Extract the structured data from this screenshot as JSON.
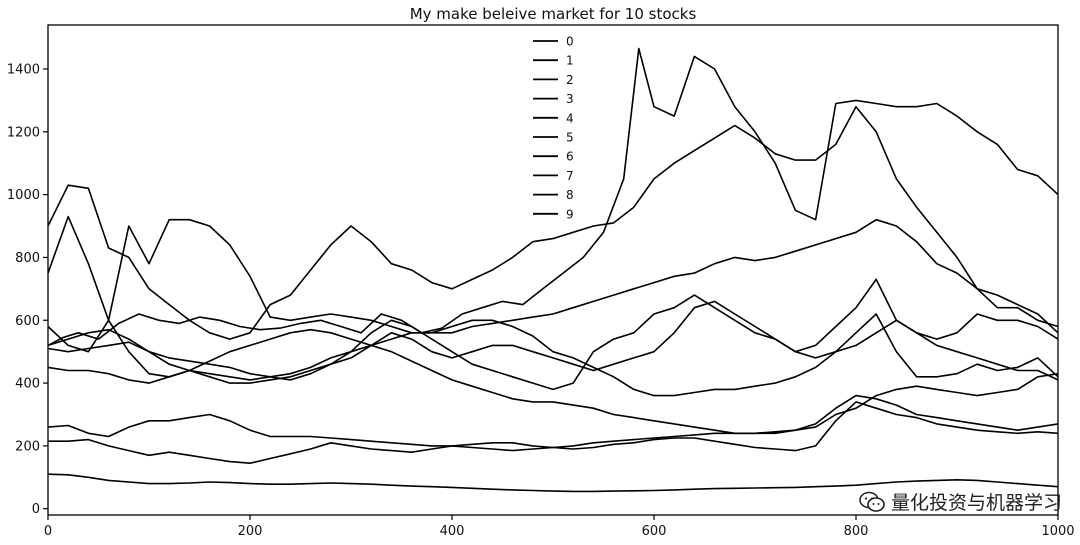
{
  "chart_data": {
    "type": "line",
    "title": "My make beleive market for 10 stocks",
    "xlabel": "",
    "ylabel": "",
    "xlim": [
      0,
      1000
    ],
    "ylim": [
      -20,
      1540
    ],
    "xticks": [
      0,
      200,
      400,
      600,
      800,
      1000
    ],
    "yticks": [
      0,
      200,
      400,
      600,
      800,
      1000,
      1200,
      1400
    ],
    "grid": false,
    "legend_position": "top-center",
    "series": [
      {
        "name": "0",
        "color": "#000000",
        "x": [
          0,
          15,
          30,
          50,
          70,
          90,
          110,
          130,
          150,
          170,
          190,
          210,
          230,
          250,
          270,
          290,
          310,
          330,
          350,
          370,
          390,
          410,
          430,
          450,
          470,
          490,
          510,
          530,
          550,
          570,
          585,
          600,
          620,
          640,
          660,
          680,
          700,
          720,
          740,
          760,
          780,
          800,
          820,
          840,
          860,
          880,
          900,
          920,
          940,
          960,
          980,
          1000
        ],
        "y": [
          520,
          545,
          560,
          540,
          590,
          620,
          600,
          590,
          610,
          600,
          580,
          570,
          575,
          590,
          600,
          580,
          560,
          620,
          600,
          560,
          575,
          620,
          640,
          660,
          650,
          700,
          750,
          800,
          880,
          1050,
          1465,
          1280,
          1250,
          1440,
          1400,
          1280,
          1200,
          1100,
          950,
          920,
          1290,
          1300,
          1290,
          1280,
          1280,
          1290,
          1250,
          1200,
          1160,
          1080,
          1060,
          1000
        ]
      },
      {
        "name": "1",
        "color": "#000000",
        "x": [
          0,
          20,
          40,
          60,
          80,
          100,
          120,
          140,
          160,
          180,
          200,
          220,
          240,
          260,
          280,
          300,
          320,
          340,
          360,
          380,
          400,
          420,
          440,
          460,
          480,
          500,
          520,
          540,
          560,
          580,
          600,
          620,
          640,
          660,
          680,
          700,
          720,
          740,
          760,
          780,
          800,
          820,
          840,
          860,
          880,
          900,
          920,
          940,
          960,
          980,
          1000
        ],
        "y": [
          900,
          1030,
          1020,
          830,
          800,
          700,
          650,
          600,
          560,
          540,
          560,
          650,
          680,
          760,
          840,
          900,
          850,
          780,
          760,
          720,
          700,
          730,
          760,
          800,
          850,
          860,
          880,
          900,
          910,
          960,
          1050,
          1100,
          1140,
          1180,
          1220,
          1180,
          1130,
          1110,
          1110,
          1160,
          1280,
          1200,
          1050,
          960,
          880,
          800,
          700,
          640,
          640,
          600,
          580
        ]
      },
      {
        "name": "2",
        "color": "#000000",
        "x": [
          0,
          20,
          40,
          60,
          80,
          100,
          120,
          140,
          160,
          180,
          200,
          220,
          240,
          260,
          280,
          300,
          320,
          340,
          360,
          380,
          400,
          420,
          440,
          460,
          480,
          500,
          520,
          540,
          560,
          580,
          600,
          620,
          640,
          660,
          680,
          700,
          720,
          740,
          760,
          780,
          800,
          820,
          840,
          860,
          880,
          900,
          920,
          940,
          960,
          980,
          1000
        ],
        "y": [
          750,
          930,
          780,
          600,
          500,
          430,
          420,
          440,
          470,
          500,
          520,
          540,
          560,
          570,
          560,
          540,
          520,
          500,
          470,
          440,
          410,
          390,
          370,
          350,
          340,
          340,
          330,
          320,
          300,
          290,
          280,
          270,
          260,
          250,
          240,
          240,
          240,
          250,
          260,
          300,
          320,
          360,
          380,
          390,
          380,
          370,
          360,
          370,
          380,
          420,
          430
        ]
      },
      {
        "name": "3",
        "color": "#000000",
        "x": [
          0,
          20,
          40,
          60,
          80,
          100,
          120,
          140,
          160,
          180,
          200,
          220,
          240,
          260,
          280,
          300,
          320,
          340,
          360,
          380,
          400,
          420,
          440,
          460,
          480,
          500,
          520,
          540,
          560,
          580,
          600,
          620,
          640,
          660,
          680,
          700,
          720,
          740,
          760,
          780,
          800,
          820,
          840,
          860,
          880,
          900,
          920,
          940,
          960,
          980,
          1000
        ],
        "y": [
          580,
          520,
          500,
          600,
          900,
          780,
          920,
          920,
          900,
          840,
          740,
          610,
          600,
          610,
          620,
          610,
          600,
          580,
          560,
          560,
          560,
          580,
          590,
          600,
          610,
          620,
          640,
          660,
          680,
          700,
          720,
          740,
          750,
          780,
          800,
          790,
          800,
          820,
          840,
          860,
          880,
          920,
          900,
          850,
          780,
          750,
          700,
          680,
          650,
          620,
          560
        ]
      },
      {
        "name": "4",
        "color": "#000000",
        "x": [
          0,
          20,
          40,
          60,
          80,
          100,
          120,
          140,
          160,
          180,
          200,
          220,
          240,
          260,
          280,
          300,
          320,
          340,
          360,
          380,
          400,
          420,
          440,
          460,
          480,
          500,
          520,
          540,
          560,
          580,
          600,
          620,
          640,
          660,
          680,
          700,
          720,
          740,
          760,
          780,
          800,
          820,
          840,
          860,
          880,
          900,
          920,
          940,
          960,
          980,
          1000
        ],
        "y": [
          510,
          500,
          510,
          520,
          530,
          500,
          480,
          470,
          460,
          450,
          430,
          420,
          410,
          430,
          460,
          500,
          560,
          600,
          580,
          540,
          500,
          460,
          440,
          420,
          400,
          380,
          400,
          500,
          540,
          560,
          620,
          640,
          680,
          640,
          600,
          560,
          540,
          500,
          520,
          580,
          640,
          730,
          600,
          560,
          540,
          560,
          620,
          600,
          600,
          580,
          540
        ]
      },
      {
        "name": "5",
        "color": "#000000",
        "x": [
          0,
          20,
          40,
          60,
          80,
          100,
          120,
          140,
          160,
          180,
          200,
          220,
          240,
          260,
          280,
          300,
          320,
          340,
          360,
          380,
          400,
          420,
          440,
          460,
          480,
          500,
          520,
          540,
          560,
          580,
          600,
          620,
          640,
          660,
          680,
          700,
          720,
          740,
          760,
          780,
          800,
          820,
          840,
          860,
          880,
          900,
          920,
          940,
          960,
          980,
          1000
        ],
        "y": [
          450,
          440,
          440,
          430,
          410,
          400,
          420,
          440,
          430,
          420,
          410,
          420,
          430,
          450,
          480,
          500,
          520,
          540,
          560,
          560,
          580,
          600,
          600,
          580,
          550,
          500,
          480,
          450,
          420,
          380,
          360,
          360,
          370,
          380,
          380,
          390,
          400,
          420,
          450,
          500,
          560,
          620,
          500,
          420,
          420,
          430,
          460,
          440,
          450,
          480,
          420
        ]
      },
      {
        "name": "6",
        "color": "#000000",
        "x": [
          0,
          20,
          40,
          60,
          80,
          100,
          120,
          140,
          160,
          180,
          200,
          220,
          240,
          260,
          280,
          300,
          320,
          340,
          360,
          380,
          400,
          420,
          440,
          460,
          480,
          500,
          520,
          540,
          560,
          580,
          600,
          620,
          640,
          660,
          680,
          700,
          720,
          740,
          760,
          780,
          800,
          820,
          840,
          860,
          880,
          900,
          920,
          940,
          960,
          980,
          1000
        ],
        "y": [
          520,
          540,
          560,
          570,
          540,
          500,
          460,
          440,
          420,
          400,
          400,
          410,
          420,
          440,
          460,
          480,
          520,
          560,
          540,
          500,
          480,
          500,
          520,
          520,
          500,
          480,
          460,
          440,
          460,
          480,
          500,
          560,
          640,
          660,
          620,
          580,
          540,
          500,
          480,
          500,
          520,
          560,
          600,
          560,
          520,
          500,
          480,
          460,
          440,
          440,
          410
        ]
      },
      {
        "name": "7",
        "color": "#000000",
        "x": [
          0,
          20,
          40,
          60,
          80,
          100,
          120,
          140,
          160,
          180,
          200,
          220,
          240,
          260,
          280,
          300,
          320,
          340,
          360,
          380,
          400,
          420,
          440,
          460,
          480,
          500,
          520,
          540,
          560,
          580,
          600,
          620,
          640,
          660,
          680,
          700,
          720,
          740,
          760,
          780,
          800,
          820,
          840,
          860,
          880,
          900,
          920,
          940,
          960,
          980,
          1000
        ],
        "y": [
          260,
          265,
          240,
          230,
          260,
          280,
          280,
          290,
          300,
          280,
          250,
          230,
          230,
          230,
          225,
          220,
          215,
          210,
          205,
          200,
          200,
          195,
          190,
          185,
          190,
          195,
          200,
          210,
          215,
          220,
          225,
          230,
          235,
          240,
          240,
          240,
          245,
          250,
          270,
          320,
          360,
          350,
          330,
          300,
          290,
          280,
          270,
          260,
          250,
          260,
          270
        ]
      },
      {
        "name": "8",
        "color": "#000000",
        "x": [
          0,
          20,
          40,
          60,
          80,
          100,
          120,
          140,
          160,
          180,
          200,
          220,
          240,
          260,
          280,
          300,
          320,
          340,
          360,
          380,
          400,
          420,
          440,
          460,
          480,
          500,
          520,
          540,
          560,
          580,
          600,
          620,
          640,
          660,
          680,
          700,
          720,
          740,
          760,
          780,
          800,
          820,
          840,
          860,
          880,
          900,
          920,
          940,
          960,
          980,
          1000
        ],
        "y": [
          215,
          215,
          220,
          200,
          185,
          170,
          180,
          170,
          160,
          150,
          145,
          160,
          175,
          190,
          210,
          200,
          190,
          185,
          180,
          190,
          200,
          205,
          210,
          210,
          200,
          195,
          190,
          195,
          205,
          210,
          220,
          225,
          225,
          215,
          205,
          195,
          190,
          185,
          200,
          280,
          340,
          320,
          300,
          290,
          270,
          260,
          250,
          245,
          240,
          245,
          240
        ]
      },
      {
        "name": "9",
        "color": "#000000",
        "x": [
          0,
          20,
          40,
          60,
          80,
          100,
          120,
          140,
          160,
          180,
          200,
          220,
          240,
          260,
          280,
          300,
          320,
          340,
          360,
          380,
          400,
          420,
          440,
          460,
          480,
          500,
          520,
          540,
          560,
          580,
          600,
          620,
          640,
          660,
          680,
          700,
          720,
          740,
          760,
          780,
          800,
          820,
          840,
          860,
          880,
          900,
          920,
          940,
          960,
          980,
          1000
        ],
        "y": [
          110,
          108,
          100,
          90,
          85,
          80,
          80,
          82,
          85,
          83,
          80,
          78,
          78,
          80,
          82,
          80,
          78,
          75,
          72,
          70,
          68,
          65,
          62,
          60,
          58,
          56,
          55,
          55,
          56,
          57,
          58,
          60,
          62,
          64,
          65,
          66,
          67,
          68,
          70,
          72,
          75,
          80,
          85,
          88,
          90,
          92,
          90,
          85,
          80,
          75,
          70
        ]
      }
    ]
  },
  "watermark": {
    "text": "量化投资与机器学习",
    "icon": "wechat-icon"
  }
}
